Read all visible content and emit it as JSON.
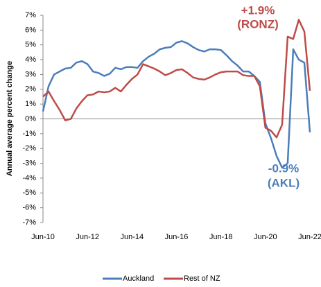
{
  "chart_data": {
    "type": "line",
    "y_label": "Annual average percent change",
    "categories": [
      "Jun-10",
      null,
      null,
      null,
      null,
      null,
      null,
      null,
      "Jun-12",
      null,
      null,
      null,
      null,
      null,
      null,
      null,
      "Jun-14",
      null,
      null,
      null,
      null,
      null,
      null,
      null,
      "Jun-16",
      null,
      null,
      null,
      null,
      null,
      null,
      null,
      "Jun-18",
      null,
      null,
      null,
      null,
      null,
      null,
      null,
      "Jun-20",
      null,
      null,
      null,
      null,
      null,
      null,
      null,
      "Jun-22"
    ],
    "series": [
      {
        "name": "Auckland",
        "color": "#4a7ebb",
        "values": [
          0.5,
          2.2,
          3.0,
          3.2,
          3.4,
          3.45,
          3.8,
          3.9,
          3.7,
          3.2,
          3.1,
          2.9,
          3.05,
          3.45,
          3.35,
          3.5,
          3.5,
          3.45,
          3.9,
          4.2,
          4.4,
          4.7,
          4.8,
          4.85,
          5.15,
          5.25,
          5.1,
          4.85,
          4.65,
          4.55,
          4.7,
          4.7,
          4.65,
          4.3,
          3.9,
          3.6,
          3.2,
          3.2,
          2.9,
          2.5,
          -0.3,
          -1.3,
          -2.5,
          -3.3,
          -3.0,
          4.7,
          4.0,
          3.8,
          -0.9
        ]
      },
      {
        "name": "Rest of NZ",
        "color": "#be4b48",
        "values": [
          1.5,
          1.85,
          1.2,
          0.6,
          -0.1,
          0.0,
          0.7,
          1.2,
          1.6,
          1.65,
          1.85,
          1.8,
          1.85,
          2.1,
          1.85,
          2.3,
          2.7,
          3.0,
          3.7,
          3.55,
          3.4,
          3.2,
          2.95,
          3.1,
          3.3,
          3.35,
          3.1,
          2.8,
          2.7,
          2.65,
          2.8,
          3.0,
          3.15,
          3.2,
          3.2,
          3.2,
          2.95,
          2.9,
          2.9,
          2.2,
          -0.6,
          -0.8,
          -1.25,
          -0.4,
          5.55,
          5.4,
          6.7,
          5.9,
          1.9
        ]
      }
    ],
    "annotations": [
      {
        "text": "+1.9%",
        "color": "#be4b48"
      },
      {
        "text": "(RONZ)",
        "color": "#be4b48"
      },
      {
        "text": "-0.9%",
        "color": "#4a7ebb"
      },
      {
        "text": "(AKL)",
        "color": "#4a7ebb"
      }
    ],
    "ylim": [
      -7,
      7
    ],
    "yticks": [
      {
        "value": -7,
        "label": "-7%"
      },
      {
        "value": -6,
        "label": "-6%"
      },
      {
        "value": -5,
        "label": "-5%"
      },
      {
        "value": -4,
        "label": "-4%"
      },
      {
        "value": -3,
        "label": "-3%"
      },
      {
        "value": -2,
        "label": "-2%"
      },
      {
        "value": -1,
        "label": "-1%"
      },
      {
        "value": 0,
        "label": "0%"
      },
      {
        "value": 1,
        "label": "1%"
      },
      {
        "value": 2,
        "label": "2%"
      },
      {
        "value": 3,
        "label": "3%"
      },
      {
        "value": 4,
        "label": "4%"
      },
      {
        "value": 5,
        "label": "5%"
      },
      {
        "value": 6,
        "label": "6%"
      },
      {
        "value": 7,
        "label": "7%"
      }
    ],
    "grid": false
  }
}
